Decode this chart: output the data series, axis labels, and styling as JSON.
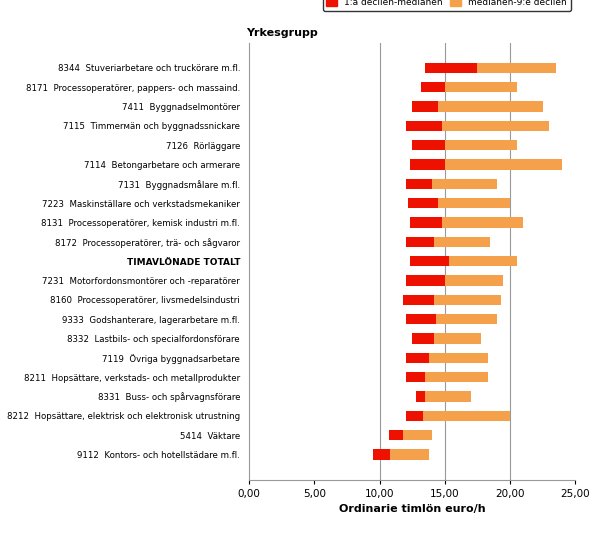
{
  "title": "Yrkesgrupp",
  "xlabel": "Ordinarie timlön euro/h",
  "legend_labels": [
    "1:a decilen-medianen",
    "medianen-9:e decilen"
  ],
  "categories": [
    "8344  Stuveriarbetare och truckörare m.fl.",
    "8171  Processoperatörer, pappers- och massaind.",
    "7411  Byggnadselmontörer",
    "7115  Timmerмän och byggnadssnickare",
    "7126  Rörläggare",
    "7114  Betongarbetare och armerare",
    "7131  Byggnadsmålare m.fl.",
    "7223  Maskinställare och verkstadsmekaniker",
    "8131  Processoperatörer, kemisk industri m.fl.",
    "8172  Processoperatörer, trä- och sågvaror",
    "TIMAVLÖNADE TOTALT",
    "7231  Motorfordonsmontörer och -reparatörer",
    "8160  Processoperatörer, livsmedelsindustri",
    "9333  Godshanterare, lagerarbetare m.fl.",
    "8332  Lastbils- och specialfordonsförare",
    "7119  Övriga byggnadsarbetare",
    "8211  Hopsättare, verkstads- och metallprodukter",
    "8331  Buss- och spårvagnsförare",
    "8212  Hopsättare, elektrisk och elektronisk utrustning",
    "5414  Väktare",
    "9112  Kontors- och hotellstädare m.fl."
  ],
  "decile1": [
    13.5,
    13.2,
    12.5,
    12.0,
    12.5,
    12.3,
    12.0,
    12.2,
    12.3,
    12.0,
    12.3,
    12.0,
    11.8,
    12.0,
    12.5,
    12.0,
    12.0,
    12.8,
    12.0,
    10.7,
    9.5
  ],
  "median": [
    17.5,
    15.0,
    14.5,
    14.8,
    15.0,
    15.0,
    14.0,
    14.5,
    14.8,
    14.2,
    15.3,
    15.0,
    14.2,
    14.3,
    14.2,
    13.8,
    13.5,
    13.5,
    13.3,
    11.8,
    10.8
  ],
  "decile9": [
    23.5,
    20.5,
    22.5,
    23.0,
    20.5,
    24.0,
    19.0,
    20.0,
    21.0,
    18.5,
    20.5,
    19.5,
    19.3,
    19.0,
    17.8,
    18.3,
    18.3,
    17.0,
    20.0,
    14.0,
    13.8
  ],
  "xlim": [
    0,
    25
  ],
  "xticks": [
    0,
    5,
    10,
    15,
    20,
    25
  ],
  "xticklabels": [
    "0,00",
    "5,00",
    "10,00",
    "15,00",
    "20,00",
    "25,00"
  ],
  "vlines": [
    10.0,
    15.0,
    20.0
  ],
  "bar_height": 0.55,
  "red_color": "#ee1100",
  "orange_color": "#f5a04a",
  "background_color": "#ffffff",
  "grid_color": "#999999",
  "spine_color": "#999999"
}
